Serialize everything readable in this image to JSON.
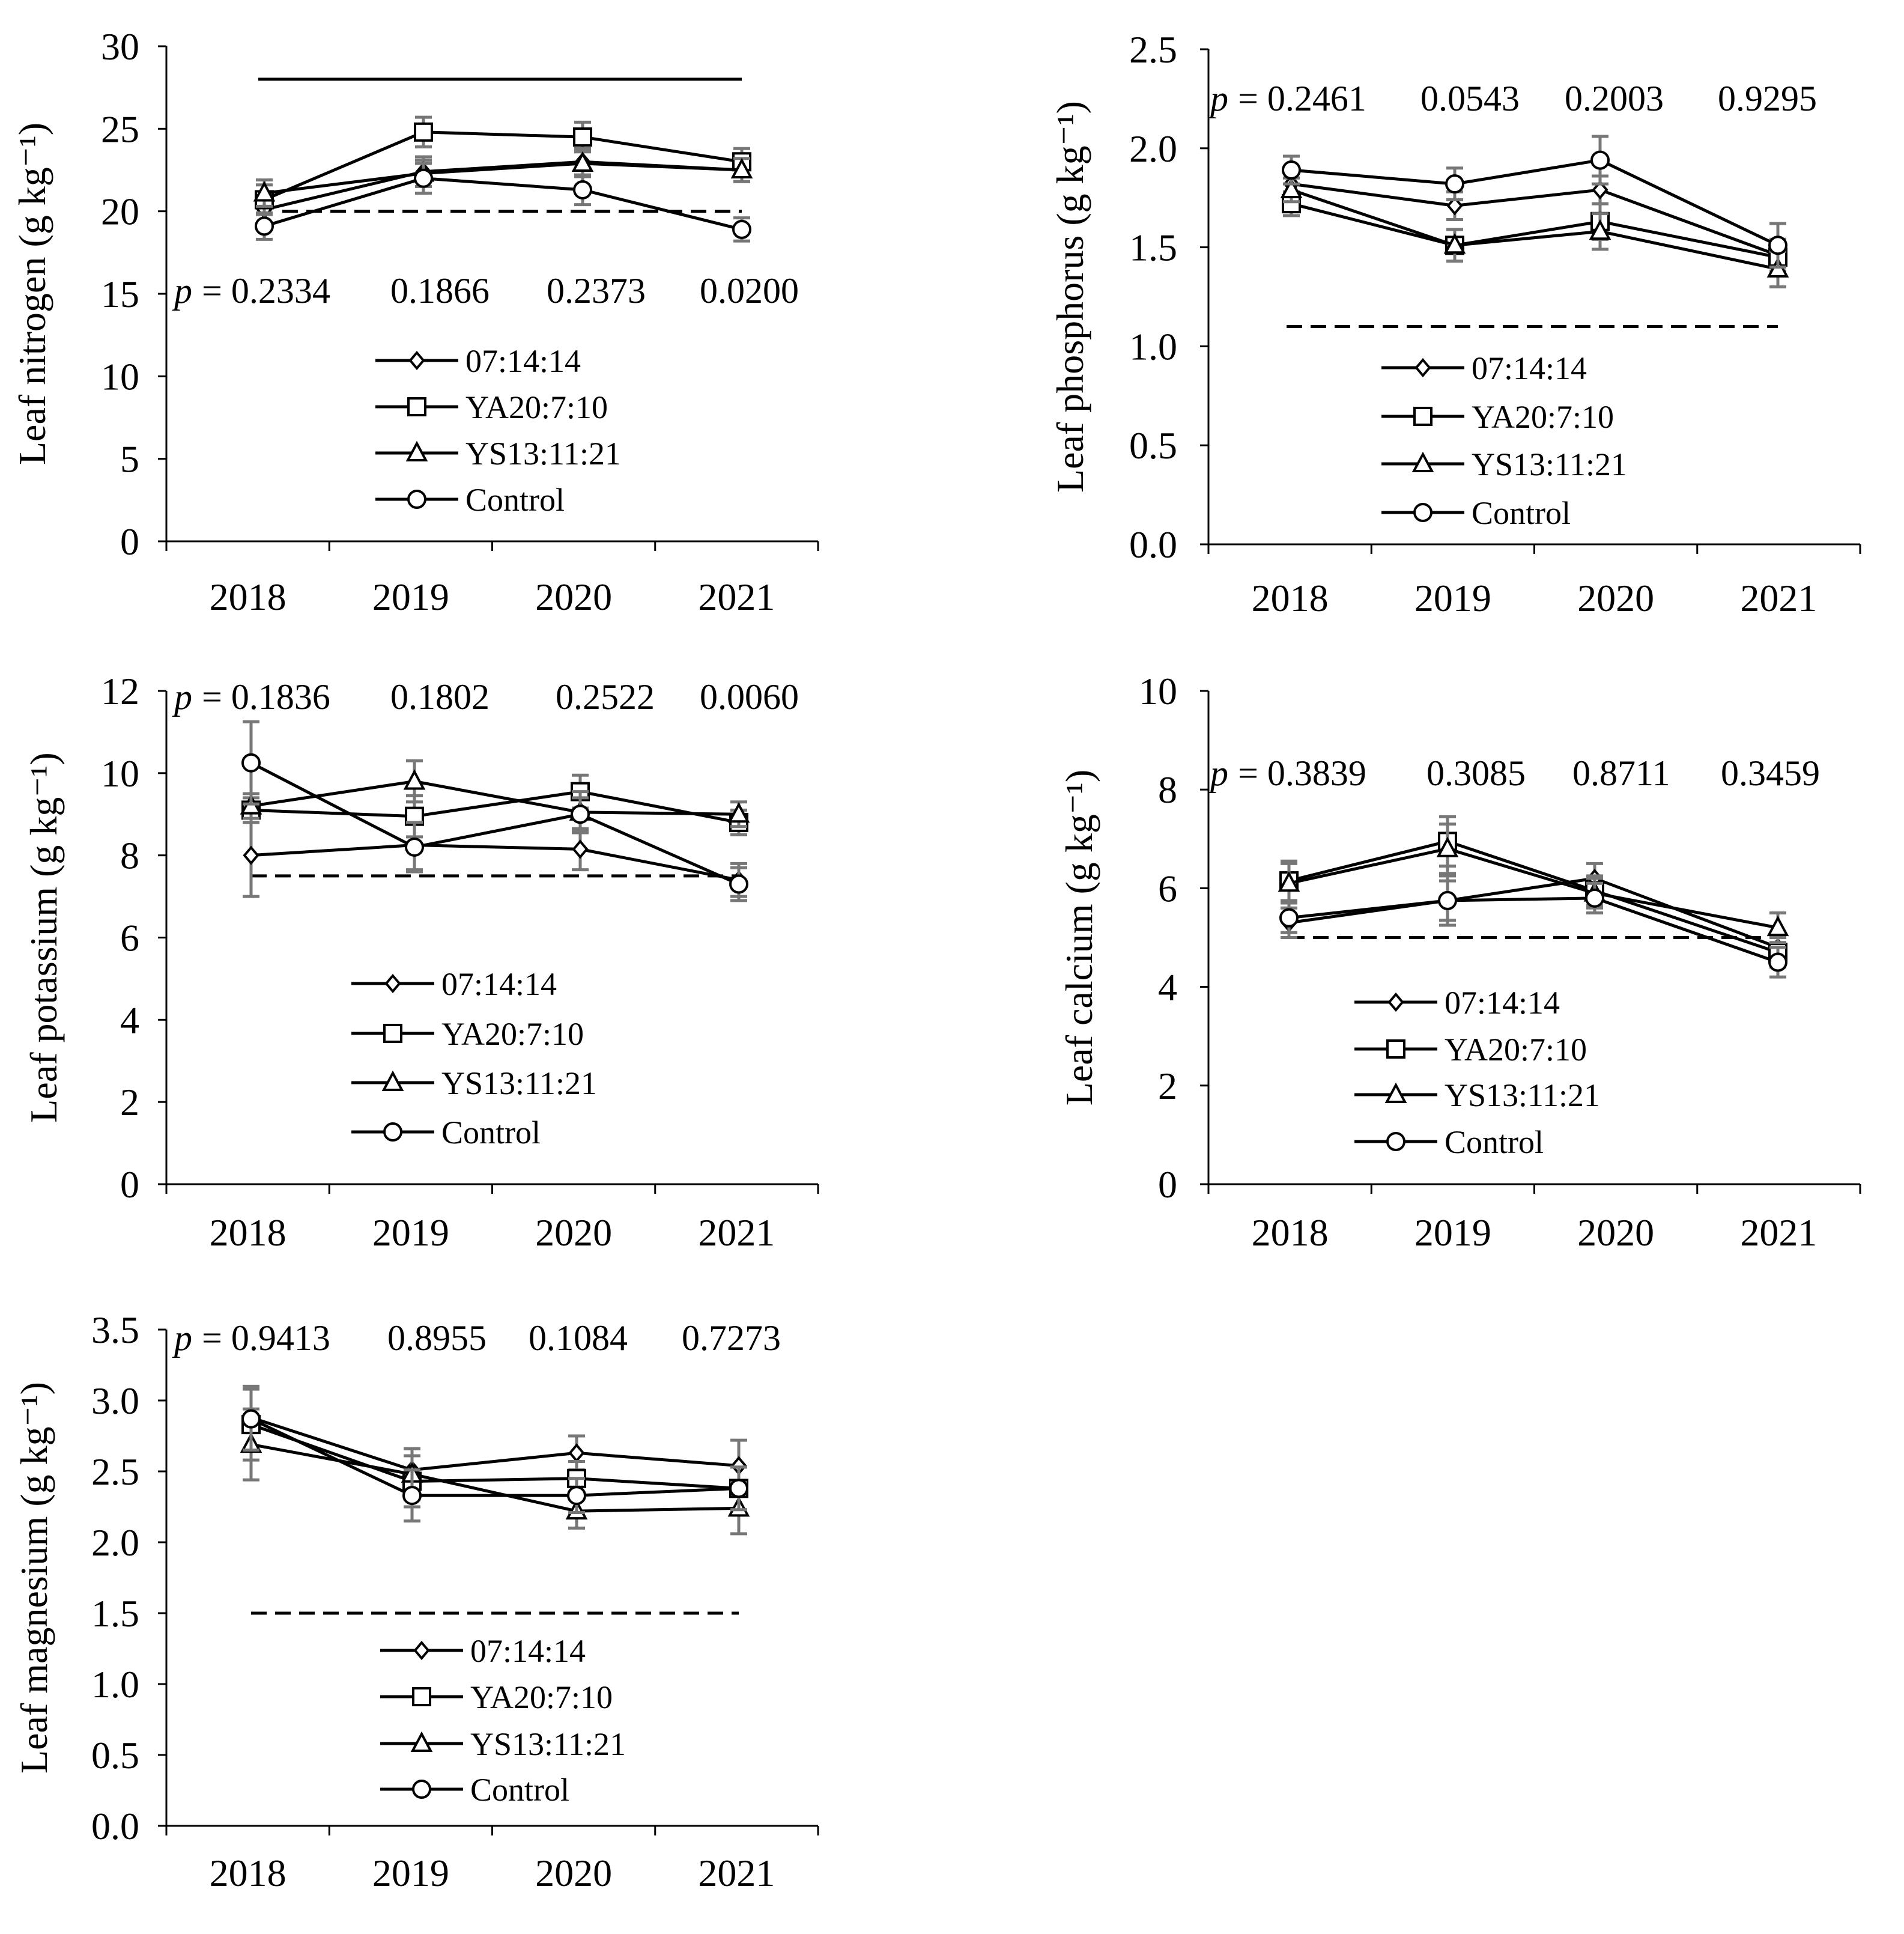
{
  "chart_data": [
    {
      "id": "nitrogen",
      "type": "line",
      "ylabel": "Leaf nitrogen (g kg⁻¹)",
      "categories": [
        "2018",
        "2019",
        "2020",
        "2021"
      ],
      "ylim": [
        0,
        30
      ],
      "yticks": [
        "0",
        "5",
        "10",
        "15",
        "20",
        "25",
        "30"
      ],
      "p_prefix": "p",
      "p_values": [
        "= 0.2334",
        "0.1866",
        "0.2373",
        "0.0200"
      ],
      "reference_lines": [
        {
          "style": "solid",
          "value": 28
        },
        {
          "style": "dashed",
          "value": 20
        }
      ],
      "legend": [
        "07:14:14",
        "YA20:7:10",
        "YS13:11:21",
        "Control"
      ],
      "series": [
        {
          "name": "07:14:14",
          "marker": "diamond",
          "values": [
            20.1,
            22.4,
            23.0,
            22.5
          ],
          "errors": [
            0.8,
            0.9,
            0.8,
            0.7
          ]
        },
        {
          "name": "YA20:7:10",
          "marker": "square",
          "values": [
            20.7,
            24.8,
            24.5,
            23.0
          ],
          "errors": [
            0.9,
            0.9,
            0.9,
            0.8
          ]
        },
        {
          "name": "YS13:11:21",
          "marker": "triangle",
          "values": [
            21.1,
            22.3,
            22.9,
            22.5
          ],
          "errors": [
            0.8,
            0.8,
            0.8,
            0.7
          ]
        },
        {
          "name": "Control",
          "marker": "circle",
          "values": [
            19.1,
            22.0,
            21.3,
            18.9
          ],
          "errors": [
            0.8,
            0.9,
            0.9,
            0.7
          ]
        }
      ]
    },
    {
      "id": "phosphorus",
      "type": "line",
      "ylabel": "Leaf phosphorus (g kg⁻¹)",
      "categories": [
        "2018",
        "2019",
        "2020",
        "2021"
      ],
      "ylim": [
        0,
        2.5
      ],
      "yticks": [
        "0.0",
        "0.5",
        "1.0",
        "1.5",
        "2.0",
        "2.5"
      ],
      "p_prefix": "p",
      "p_values": [
        "= 0.2461",
        "0.0543",
        "0.2003",
        "0.9295"
      ],
      "reference_lines": [
        {
          "style": "dashed",
          "value": 1.1
        }
      ],
      "legend": [
        "07:14:14",
        "YA20:7:10",
        "YS13:11:21",
        "Control"
      ],
      "series": [
        {
          "name": "07:14:14",
          "marker": "diamond",
          "values": [
            1.82,
            1.71,
            1.79,
            1.46
          ],
          "errors": [
            0.06,
            0.07,
            0.07,
            0.08
          ]
        },
        {
          "name": "YA20:7:10",
          "marker": "square",
          "values": [
            1.72,
            1.51,
            1.63,
            1.45
          ],
          "errors": [
            0.06,
            0.08,
            0.09,
            0.09
          ]
        },
        {
          "name": "YS13:11:21",
          "marker": "triangle",
          "values": [
            1.79,
            1.51,
            1.58,
            1.39
          ],
          "errors": [
            0.06,
            0.08,
            0.09,
            0.09
          ]
        },
        {
          "name": "Control",
          "marker": "circle",
          "values": [
            1.89,
            1.82,
            1.94,
            1.51
          ],
          "errors": [
            0.07,
            0.08,
            0.12,
            0.11
          ]
        }
      ]
    },
    {
      "id": "potassium",
      "type": "line",
      "ylabel": "Leaf potassium (g kg⁻¹)",
      "categories": [
        "2018",
        "2019",
        "2020",
        "2021"
      ],
      "ylim": [
        0,
        12
      ],
      "yticks": [
        "0",
        "2",
        "4",
        "6",
        "8",
        "10",
        "12"
      ],
      "p_prefix": "p",
      "p_values": [
        "= 0.1836",
        "0.1802",
        "0.2522",
        "0.0060"
      ],
      "reference_lines": [
        {
          "style": "dashed",
          "value": 7.5
        }
      ],
      "legend": [
        "07:14:14",
        "YA20:7:10",
        "YS13:11:21",
        "Control"
      ],
      "series": [
        {
          "name": "07:14:14",
          "marker": "diamond",
          "values": [
            8.0,
            8.25,
            8.15,
            7.4
          ],
          "errors": [
            1.0,
            0.6,
            0.5,
            0.4
          ]
        },
        {
          "name": "YA20:7:10",
          "marker": "square",
          "values": [
            9.1,
            8.95,
            9.55,
            8.8
          ],
          "errors": [
            0.3,
            0.5,
            0.4,
            0.3
          ]
        },
        {
          "name": "YS13:11:21",
          "marker": "triangle",
          "values": [
            9.2,
            9.8,
            9.05,
            9.0
          ],
          "errors": [
            0.3,
            0.5,
            0.5,
            0.3
          ]
        },
        {
          "name": "Control",
          "marker": "circle",
          "values": [
            10.25,
            8.2,
            9.0,
            7.3
          ],
          "errors": [
            1.0,
            0.6,
            0.4,
            0.4
          ]
        }
      ]
    },
    {
      "id": "calcium",
      "type": "line",
      "ylabel": "Leaf calcium (g kg⁻¹)",
      "categories": [
        "2018",
        "2019",
        "2020",
        "2021"
      ],
      "ylim": [
        0,
        10
      ],
      "yticks": [
        "0",
        "2",
        "4",
        "6",
        "8",
        "10"
      ],
      "p_prefix": "p",
      "p_values": [
        "= 0.3839",
        "0.3085",
        "0.8711",
        "0.3459"
      ],
      "reference_lines": [
        {
          "style": "dashed",
          "value": 5
        }
      ],
      "legend": [
        "07:14:14",
        "YA20:7:10",
        "YS13:11:21",
        "Control"
      ],
      "series": [
        {
          "name": "07:14:14",
          "marker": "diamond",
          "values": [
            5.3,
            5.75,
            6.2,
            4.8
          ],
          "errors": [
            0.3,
            0.5,
            0.3,
            0.3
          ]
        },
        {
          "name": "YA20:7:10",
          "marker": "square",
          "values": [
            6.15,
            6.95,
            5.95,
            4.7
          ],
          "errors": [
            0.4,
            0.5,
            0.3,
            0.3
          ]
        },
        {
          "name": "YS13:11:21",
          "marker": "triangle",
          "values": [
            6.1,
            6.8,
            5.9,
            5.2
          ],
          "errors": [
            0.4,
            0.5,
            0.3,
            0.3
          ]
        },
        {
          "name": "Control",
          "marker": "circle",
          "values": [
            5.4,
            5.75,
            5.8,
            4.5
          ],
          "errors": [
            0.3,
            0.4,
            0.3,
            0.3
          ]
        }
      ]
    },
    {
      "id": "magnesium",
      "type": "line",
      "ylabel": "Leaf magnesium (g kg⁻¹)",
      "categories": [
        "2018",
        "2019",
        "2020",
        "2021"
      ],
      "ylim": [
        0,
        3.5
      ],
      "yticks": [
        "0.0",
        "0.5",
        "1.0",
        "1.5",
        "2.0",
        "2.5",
        "3.0",
        "3.5"
      ],
      "p_prefix": "p",
      "p_values": [
        "= 0.9413",
        "0.8955",
        "0.1084",
        "0.7273"
      ],
      "reference_lines": [
        {
          "style": "dashed",
          "value": 1.5
        }
      ],
      "legend": [
        "07:14:14",
        "YA20:7:10",
        "YS13:11:21",
        "Control"
      ],
      "series": [
        {
          "name": "07:14:14",
          "marker": "diamond",
          "values": [
            2.88,
            2.51,
            2.63,
            2.54
          ],
          "errors": [
            0.22,
            0.15,
            0.12,
            0.18
          ]
        },
        {
          "name": "YA20:7:10",
          "marker": "square",
          "values": [
            2.83,
            2.43,
            2.45,
            2.38
          ],
          "errors": [
            0.25,
            0.18,
            0.12,
            0.15
          ]
        },
        {
          "name": "YS13:11:21",
          "marker": "triangle",
          "values": [
            2.69,
            2.48,
            2.22,
            2.24
          ],
          "errors": [
            0.25,
            0.18,
            0.12,
            0.18
          ]
        },
        {
          "name": "Control",
          "marker": "circle",
          "values": [
            2.87,
            2.33,
            2.33,
            2.38
          ],
          "errors": [
            0.22,
            0.18,
            0.12,
            0.15
          ]
        }
      ]
    }
  ]
}
